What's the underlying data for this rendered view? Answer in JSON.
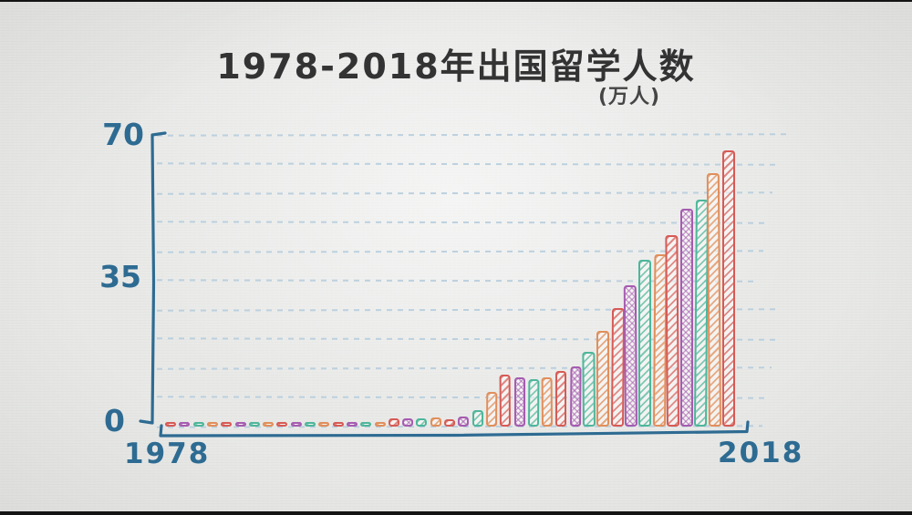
{
  "title": {
    "text": "1978-2018年出国留学人数",
    "unit": "(万人)"
  },
  "axis": {
    "y_ticks": [
      "70",
      "35",
      "0"
    ],
    "x_ticks": [
      "1978",
      "2018"
    ]
  },
  "colors": {
    "axis_blue": "#2e6b92",
    "gridline_blue": "#b3cbdc",
    "title_ink": "#333333",
    "paper": "#e8e9e7",
    "bar_red": "#d65a55",
    "bar_purple": "#a55cb0",
    "bar_green": "#4eb69b",
    "bar_orange": "#e08f5c"
  },
  "chart_data": {
    "type": "bar",
    "title": "1978-2018年出国留学人数",
    "ylabel": "万人",
    "xlabel": "",
    "ylim": [
      0,
      70
    ],
    "y_tick_values": [
      0,
      35,
      70
    ],
    "x_tick_labels": [
      "1978",
      "2018"
    ],
    "gridlines": "dashed, every 7 units",
    "legend": "none",
    "color_cycle": [
      "red",
      "purple",
      "green",
      "orange"
    ],
    "x": [
      1978,
      1979,
      1980,
      1981,
      1982,
      1983,
      1984,
      1985,
      1986,
      1987,
      1988,
      1989,
      1990,
      1991,
      1992,
      1993,
      1994,
      1995,
      1996,
      1997,
      1998,
      1999,
      2000,
      2001,
      2002,
      2003,
      2004,
      2005,
      2006,
      2007,
      2008,
      2009,
      2010,
      2011,
      2012,
      2013,
      2014,
      2015,
      2016,
      2017,
      2018
    ],
    "values": [
      0.09,
      0.17,
      0.21,
      0.28,
      0.2,
      0.26,
      0.3,
      0.49,
      0.45,
      0.48,
      0.36,
      0.32,
      0.29,
      0.29,
      0.65,
      1.07,
      1.91,
      2.04,
      2.06,
      2.23,
      1.76,
      2.39,
      3.9,
      8.4,
      12.5,
      11.73,
      11.47,
      11.85,
      13.4,
      14.4,
      17.98,
      22.93,
      28.47,
      33.97,
      39.96,
      41.39,
      45.98,
      52.37,
      54.45,
      60.84,
      66.21
    ]
  }
}
